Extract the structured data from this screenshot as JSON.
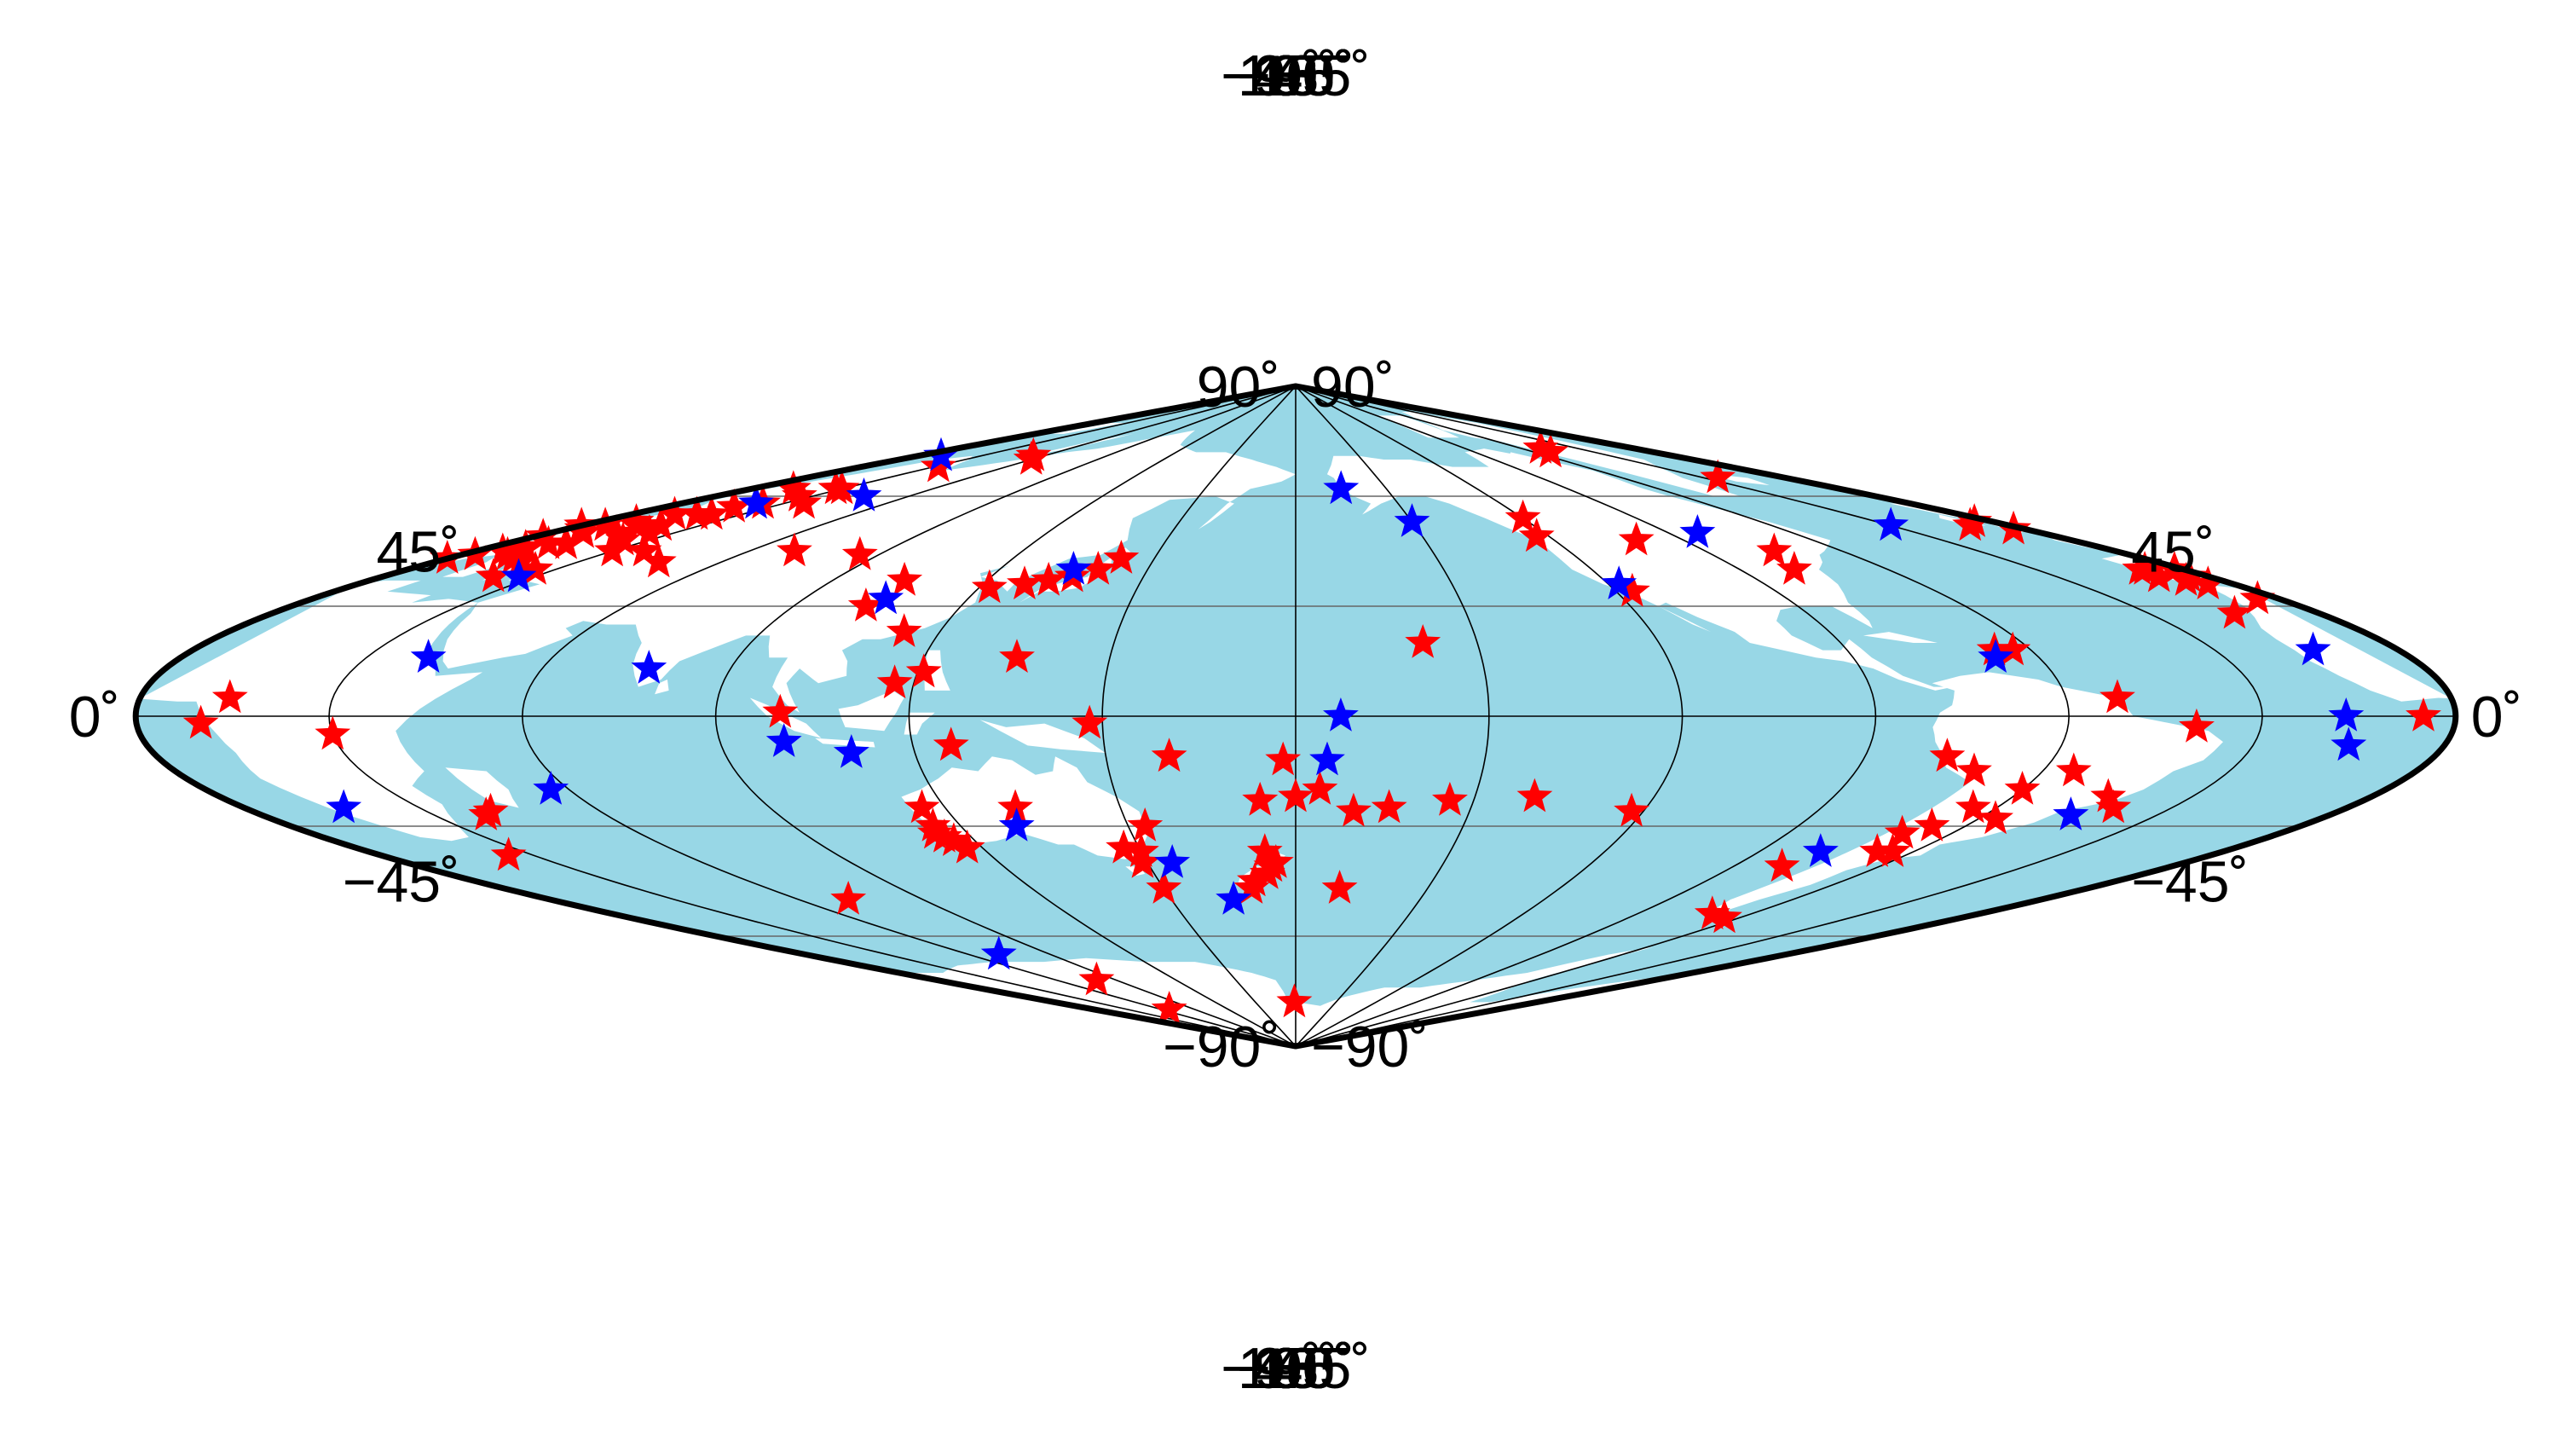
{
  "map": {
    "projection": "sinusoidal",
    "central_meridian": 180,
    "colors": {
      "ocean": "#98d7e6",
      "land": "#ffffff",
      "red_marker": "#ff0000",
      "blue_marker": "#0000ff",
      "graticule": "#000000"
    },
    "top_labels": [
      "0˚",
      "45˚",
      "90˚",
      "135˚",
      "180˚",
      "−135˚",
      "−90˚",
      "−45˚",
      "0˚"
    ],
    "bottom_labels": [
      "0˚",
      "45˚",
      "90˚",
      "135˚",
      "180˚",
      "−135˚",
      "−90˚",
      "−45˚",
      "0˚"
    ],
    "left_labels": [
      "90˚",
      "45˚",
      "0˚",
      "−45˚",
      "−90˚"
    ],
    "right_labels": [
      "90˚",
      "45˚",
      "0˚",
      "−45˚",
      "−90˚"
    ],
    "red_stations": [
      [
        -10,
        52
      ],
      [
        -5,
        53
      ],
      [
        -3,
        51
      ],
      [
        0,
        52
      ],
      [
        2,
        49
      ],
      [
        4,
        51
      ],
      [
        6,
        52
      ],
      [
        8,
        50
      ],
      [
        10,
        53
      ],
      [
        12,
        55
      ],
      [
        14,
        52
      ],
      [
        16,
        50
      ],
      [
        18,
        55
      ],
      [
        20,
        57
      ],
      [
        22,
        55
      ],
      [
        24,
        58
      ],
      [
        26,
        60
      ],
      [
        28,
        62
      ],
      [
        24,
        50
      ],
      [
        20,
        52
      ],
      [
        14,
        47
      ],
      [
        10,
        47
      ],
      [
        8,
        46
      ],
      [
        6,
        45
      ],
      [
        3,
        44
      ],
      [
        0,
        43
      ],
      [
        -2,
        40
      ],
      [
        -4,
        38
      ],
      [
        -8,
        40
      ],
      [
        10,
        44
      ],
      [
        14,
        43
      ],
      [
        18,
        42
      ],
      [
        22,
        38
      ],
      [
        26,
        40
      ],
      [
        30,
        45
      ],
      [
        37,
        45
      ],
      [
        47,
        42
      ],
      [
        70,
        45
      ],
      [
        36,
        58
      ],
      [
        30,
        62
      ],
      [
        32,
        68
      ],
      [
        60,
        70
      ],
      [
        55,
        71
      ],
      [
        24,
        48
      ],
      [
        14,
        62
      ],
      [
        -25,
        65
      ],
      [
        14,
        5
      ],
      [
        -5,
        0
      ],
      [
        10,
        -2
      ],
      [
        30,
        -5
      ],
      [
        39,
        -27
      ],
      [
        41,
        -26
      ],
      [
        25,
        -38
      ],
      [
        72,
        -50
      ],
      [
        67,
        -80
      ],
      [
        104,
        37
      ],
      [
        122,
        35
      ],
      [
        128,
        36
      ],
      [
        132,
        37
      ],
      [
        136,
        38
      ],
      [
        140,
        40
      ],
      [
        143,
        43
      ],
      [
        86,
        44
      ],
      [
        103,
        30
      ],
      [
        114,
        23
      ],
      [
        121,
        12
      ],
      [
        117,
        9
      ],
      [
        100,
        1
      ],
      [
        126,
        -8
      ],
      [
        135,
        16
      ],
      [
        148,
        -2
      ],
      [
        160,
        -11
      ],
      [
        178,
        -12
      ],
      [
        184,
        -20
      ],
      [
        180,
        -22
      ],
      [
        190,
        -26
      ],
      [
        174,
        -23
      ],
      [
        196,
        -25
      ],
      [
        206,
        -23
      ],
      [
        220,
        -22
      ],
      [
        238,
        -26
      ],
      [
        201,
        20
      ],
      [
        116,
        -25
      ],
      [
        115,
        -30
      ],
      [
        114,
        -32
      ],
      [
        115,
        -33
      ],
      [
        116,
        -34
      ],
      [
        117,
        -36
      ],
      [
        132,
        -25
      ],
      [
        153,
        -30
      ],
      [
        150,
        -37
      ],
      [
        147,
        -36
      ],
      [
        149,
        -40
      ],
      [
        150,
        -47
      ],
      [
        174,
        -37
      ],
      [
        176,
        -40
      ],
      [
        175,
        -41
      ],
      [
        174,
        -43
      ],
      [
        171,
        -45
      ],
      [
        170,
        -47
      ],
      [
        190,
        -47
      ],
      [
        179,
        -78
      ],
      [
        80,
        -72
      ],
      [
        -120,
        54
      ],
      [
        -123,
        49
      ],
      [
        -101,
        48
      ],
      [
        -75,
        45
      ],
      [
        -79,
        40
      ],
      [
        -117,
        34
      ],
      [
        -63,
        18
      ],
      [
        -66,
        18
      ],
      [
        -52,
        5
      ],
      [
        -40,
        -3
      ],
      [
        -55,
        -15
      ],
      [
        -60,
        -20
      ],
      [
        -64,
        -25
      ],
      [
        -66,
        -30
      ],
      [
        -69,
        -32
      ],
      [
        -67,
        -37
      ],
      [
        -64,
        -37
      ],
      [
        -44,
        -22
      ],
      [
        -40,
        -25
      ],
      [
        -57,
        -28
      ],
      [
        -77,
        -11
      ],
      [
        -71,
        -15
      ],
      [
        -80,
        -41
      ],
      [
        -70,
        -54
      ],
      [
        -64,
        -55
      ],
      [
        -15,
        28
      ],
      [
        -9,
        40
      ],
      [
        -10,
        38
      ],
      [
        -7,
        37
      ],
      [
        -5,
        36
      ],
      [
        -4,
        32
      ],
      [
        -50,
        73
      ],
      [
        -52,
        72
      ]
    ],
    "blue_stations": [
      [
        46,
        60
      ],
      [
        11,
        71
      ],
      [
        22,
        58
      ],
      [
        27,
        38
      ],
      [
        -17,
        0
      ],
      [
        40,
        16
      ],
      [
        77,
        13
      ],
      [
        105,
        32
      ],
      [
        100,
        -7
      ],
      [
        135,
        40
      ],
      [
        187,
        0
      ],
      [
        155,
        -40
      ],
      [
        185,
        -12
      ],
      [
        -165,
        62
      ],
      [
        -150,
        53
      ],
      [
        -83,
        50
      ],
      [
        -118,
        36
      ],
      [
        -67,
        16
      ],
      [
        -30,
        52
      ],
      [
        -14,
        18
      ],
      [
        17,
        -25
      ],
      [
        57,
        -20
      ],
      [
        71,
        -65
      ],
      [
        110,
        -10
      ],
      [
        130,
        -30
      ],
      [
        165,
        -50
      ],
      [
        -45,
        -27
      ],
      [
        -78,
        -37
      ],
      [
        -15,
        -8
      ]
    ]
  }
}
